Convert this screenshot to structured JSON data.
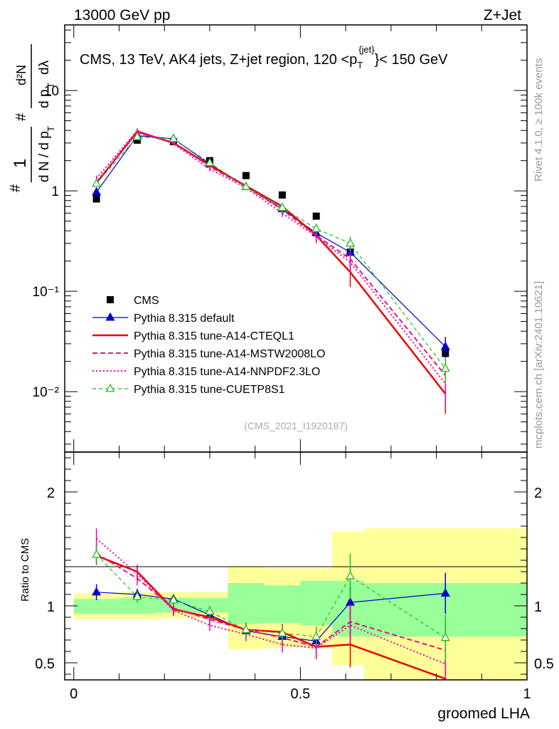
{
  "header": {
    "left": "13000 GeV pp",
    "right": "Z+Jet"
  },
  "side": {
    "rivet": "Rivet 4.1.0, ≥ 100k events",
    "mcplots": "mcplots.cern.ch [arXiv:2401.10621]"
  },
  "chart_data": [
    {
      "type": "line",
      "panel": "main",
      "title": "CMS, 13 TeV, AK4 jets, Z+jet region, 120 < pT(jet) < 150 GeV",
      "title_parts": {
        "pre": "CMS, 13 TeV, AK4 jets, Z+jet region, 120 <p",
        "sub": "T",
        "sup": "{jet}",
        "post": "}< 150 GeV"
      },
      "ylabel": "1/dN/dpT # dN/dpT dλ",
      "ylabel_parts": {
        "hash": "#",
        "one": "1",
        "dN": "d N / d p",
        "T": "T",
        "d2N": "d²N",
        "dpdl": "d p",
        "dl": "dλ"
      },
      "xlabel": "groomed LHA",
      "yscale": "log",
      "ylim": [
        0.0025,
        45
      ],
      "xlim": [
        -0.02,
        1.0
      ],
      "y_ticks": [
        {
          "v": 0.01,
          "label": "10⁻²"
        },
        {
          "v": 0.1,
          "label": "10⁻¹"
        },
        {
          "v": 1,
          "label": "1"
        },
        {
          "v": 10,
          "label": "10"
        }
      ],
      "x": [
        0.05,
        0.14,
        0.22,
        0.3,
        0.38,
        0.46,
        0.535,
        0.61,
        0.82
      ],
      "series": [
        {
          "name": "CMS",
          "style": "data",
          "color": "#000000",
          "values": [
            0.83,
            3.2,
            3.1,
            2.0,
            1.42,
            0.91,
            0.56,
            0.245,
            0.024
          ]
        },
        {
          "name": "Pythia 8.315 default",
          "style": "solid-triangle",
          "color": "#0000cc",
          "values": [
            0.97,
            3.55,
            3.3,
            1.85,
            1.1,
            0.66,
            0.38,
            0.245,
            0.028
          ],
          "err": [
            0.07,
            0.15,
            0.12,
            0.08,
            0.05,
            0.05,
            0.04,
            0.03,
            0.007
          ]
        },
        {
          "name": "Pythia 8.315 tune-A14-CTEQL1",
          "style": "solid-thick",
          "color": "#ee0000",
          "values": [
            1.2,
            3.9,
            3.0,
            1.8,
            1.12,
            0.7,
            0.36,
            0.155,
            0.0095
          ],
          "err": [
            0.08,
            0.2,
            0.12,
            0.08,
            0.05,
            0.05,
            0.05,
            0.045,
            0.0035
          ]
        },
        {
          "name": "Pythia 8.315 tune-A14-MSTW2008LO",
          "style": "dashed",
          "color": "#ee1177",
          "values": [
            1.22,
            3.8,
            3.05,
            1.75,
            1.1,
            0.65,
            0.36,
            0.21,
            0.0145
          ],
          "err": [
            0.08,
            0.2,
            0.12,
            0.08,
            0.05,
            0.05,
            0.05,
            0.04,
            0.005
          ]
        },
        {
          "name": "Pythia 8.315 tune-A14-NNPDF2.3LO",
          "style": "dotted",
          "color": "#ee00aa",
          "values": [
            1.33,
            4.0,
            2.95,
            1.65,
            1.07,
            0.6,
            0.35,
            0.195,
            0.012
          ],
          "err": [
            0.09,
            0.2,
            0.12,
            0.08,
            0.05,
            0.05,
            0.05,
            0.04,
            0.005
          ]
        },
        {
          "name": "Pythia 8.315 tune-CUETP8S1",
          "style": "dashed-open-triangle",
          "color": "#22bb22",
          "values": [
            1.18,
            3.45,
            3.3,
            1.9,
            1.1,
            0.68,
            0.42,
            0.3,
            0.017
          ],
          "err": [
            0.08,
            0.15,
            0.12,
            0.08,
            0.05,
            0.05,
            0.05,
            0.05,
            0.005
          ]
        }
      ],
      "legend_position": "lower-left",
      "watermark": "(CMS_2021_I1920187)"
    },
    {
      "type": "line",
      "panel": "ratio",
      "ylabel": "Ratio to CMS",
      "xlabel": "groomed LHA",
      "ylim": [
        0.35,
        2.35
      ],
      "xlim": [
        -0.02,
        1.0
      ],
      "y_ticks": [
        {
          "v": 0.5,
          "label": "0.5"
        },
        {
          "v": 1,
          "label": "1"
        },
        {
          "v": 2,
          "label": "2"
        }
      ],
      "x_ticks": [
        {
          "v": 0,
          "label": "0"
        },
        {
          "v": 0.5,
          "label": "0.5"
        },
        {
          "v": 1,
          "label": "1"
        }
      ],
      "bin_edges": [
        0.0,
        0.1,
        0.18,
        0.26,
        0.34,
        0.42,
        0.5,
        0.57,
        0.64,
        1.0
      ],
      "band_inner": [
        [
          0.93,
          1.06
        ],
        [
          0.93,
          1.07
        ],
        [
          0.94,
          1.07
        ],
        [
          0.94,
          1.07
        ],
        [
          0.84,
          1.2
        ],
        [
          0.85,
          1.18
        ],
        [
          0.83,
          1.22
        ],
        [
          0.73,
          1.22
        ],
        [
          0.73,
          1.2
        ]
      ],
      "band_outer": [
        [
          0.88,
          1.11
        ],
        [
          0.88,
          1.12
        ],
        [
          0.89,
          1.12
        ],
        [
          0.89,
          1.12
        ],
        [
          0.62,
          1.35
        ],
        [
          0.63,
          1.33
        ],
        [
          0.63,
          1.33
        ],
        [
          0.48,
          1.65
        ],
        [
          0.35,
          1.68
        ]
      ],
      "x": [
        0.05,
        0.14,
        0.22,
        0.3,
        0.38,
        0.46,
        0.535,
        0.61,
        0.82
      ],
      "series": [
        {
          "name": "Pythia 8.315 default",
          "color": "#0000cc",
          "values": [
            1.12,
            1.1,
            1.06,
            0.92,
            0.78,
            0.73,
            0.69,
            1.03,
            1.11
          ],
          "err": [
            0.07,
            0.05,
            0.04,
            0.04,
            0.05,
            0.06,
            0.08,
            0.14,
            0.18
          ]
        },
        {
          "name": "Pythia 8.315 tune-A14-CTEQL1",
          "color": "#ee0000",
          "values": [
            1.44,
            1.3,
            0.97,
            0.9,
            0.79,
            0.77,
            0.64,
            0.66,
            0.36
          ],
          "err": [
            0.08,
            0.06,
            0.05,
            0.05,
            0.06,
            0.07,
            0.1,
            0.2,
            0.15
          ]
        },
        {
          "name": "Pythia 8.315 tune-A14-MSTW2008LO",
          "color": "#ee1177",
          "values": [
            1.46,
            1.24,
            0.98,
            0.88,
            0.79,
            0.72,
            0.64,
            0.86,
            0.61
          ],
          "err": [
            0.08,
            0.06,
            0.05,
            0.05,
            0.06,
            0.07,
            0.1,
            0.16,
            0.22
          ]
        },
        {
          "name": "Pythia 8.315 tune-A14-NNPDF2.3LO",
          "color": "#ee00aa",
          "values": [
            1.59,
            1.28,
            0.96,
            0.83,
            0.75,
            0.66,
            0.63,
            0.83,
            0.49
          ],
          "err": [
            0.09,
            0.06,
            0.05,
            0.05,
            0.06,
            0.07,
            0.1,
            0.16,
            0.2
          ]
        },
        {
          "name": "Pythia 8.315 tune-CUETP8S1",
          "color": "#22bb22",
          "values": [
            1.45,
            1.08,
            1.05,
            0.95,
            0.79,
            0.76,
            0.73,
            1.26,
            0.72
          ],
          "err": [
            0.08,
            0.05,
            0.05,
            0.05,
            0.06,
            0.07,
            0.09,
            0.2,
            0.2
          ]
        }
      ]
    }
  ]
}
